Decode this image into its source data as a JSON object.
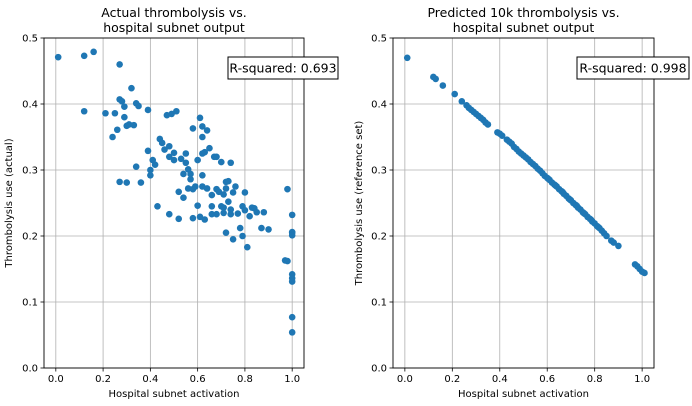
{
  "chart_data": [
    {
      "type": "scatter",
      "title_line1": "Actual thrombolysis vs.",
      "title_line2": "hospital subnet output",
      "xlabel": "Hospital subnet activation",
      "ylabel": "Thrombolysis use (actual)",
      "xlim": [
        -0.05,
        1.05
      ],
      "ylim": [
        0.0,
        0.5
      ],
      "xticks": [
        "0.0",
        "0.2",
        "0.4",
        "0.6",
        "0.8",
        "1.0"
      ],
      "yticks": [
        "0.0",
        "0.1",
        "0.2",
        "0.3",
        "0.4",
        "0.5"
      ],
      "grid": true,
      "annotation": "R-squared: 0.693",
      "annotation_position": "top-right",
      "color": "#1f77b4",
      "points": [
        [
          0.01,
          0.471
        ],
        [
          0.12,
          0.473
        ],
        [
          0.16,
          0.479
        ],
        [
          0.12,
          0.389
        ],
        [
          0.21,
          0.386
        ],
        [
          0.25,
          0.386
        ],
        [
          0.24,
          0.35
        ],
        [
          0.26,
          0.361
        ],
        [
          0.27,
          0.407
        ],
        [
          0.27,
          0.46
        ],
        [
          0.28,
          0.404
        ],
        [
          0.29,
          0.396
        ],
        [
          0.29,
          0.38
        ],
        [
          0.3,
          0.367
        ],
        [
          0.31,
          0.369
        ],
        [
          0.32,
          0.424
        ],
        [
          0.33,
          0.368
        ],
        [
          0.34,
          0.401
        ],
        [
          0.35,
          0.397
        ],
        [
          0.34,
          0.305
        ],
        [
          0.3,
          0.281
        ],
        [
          0.36,
          0.281
        ],
        [
          0.27,
          0.282
        ],
        [
          0.39,
          0.391
        ],
        [
          0.39,
          0.329
        ],
        [
          0.4,
          0.3
        ],
        [
          0.41,
          0.315
        ],
        [
          0.42,
          0.308
        ],
        [
          0.4,
          0.292
        ],
        [
          0.43,
          0.245
        ],
        [
          0.44,
          0.347
        ],
        [
          0.45,
          0.341
        ],
        [
          0.46,
          0.331
        ],
        [
          0.47,
          0.383
        ],
        [
          0.48,
          0.336
        ],
        [
          0.48,
          0.32
        ],
        [
          0.49,
          0.385
        ],
        [
          0.5,
          0.326
        ],
        [
          0.51,
          0.389
        ],
        [
          0.5,
          0.315
        ],
        [
          0.52,
          0.267
        ],
        [
          0.53,
          0.317
        ],
        [
          0.54,
          0.294
        ],
        [
          0.55,
          0.325
        ],
        [
          0.55,
          0.311
        ],
        [
          0.56,
          0.301
        ],
        [
          0.56,
          0.272
        ],
        [
          0.57,
          0.294
        ],
        [
          0.57,
          0.286
        ],
        [
          0.58,
          0.363
        ],
        [
          0.58,
          0.271
        ],
        [
          0.59,
          0.275
        ],
        [
          0.6,
          0.315
        ],
        [
          0.61,
          0.379
        ],
        [
          0.62,
          0.366
        ],
        [
          0.62,
          0.35
        ],
        [
          0.62,
          0.325
        ],
        [
          0.62,
          0.292
        ],
        [
          0.62,
          0.275
        ],
        [
          0.63,
          0.327
        ],
        [
          0.64,
          0.36
        ],
        [
          0.64,
          0.272
        ],
        [
          0.65,
          0.333
        ],
        [
          0.66,
          0.245
        ],
        [
          0.66,
          0.262
        ],
        [
          0.67,
          0.32
        ],
        [
          0.68,
          0.32
        ],
        [
          0.68,
          0.271
        ],
        [
          0.69,
          0.267
        ],
        [
          0.7,
          0.312
        ],
        [
          0.7,
          0.245
        ],
        [
          0.71,
          0.263
        ],
        [
          0.71,
          0.243
        ],
        [
          0.71,
          0.235
        ],
        [
          0.72,
          0.282
        ],
        [
          0.72,
          0.272
        ],
        [
          0.73,
          0.283
        ],
        [
          0.73,
          0.252
        ],
        [
          0.74,
          0.311
        ],
        [
          0.74,
          0.24
        ],
        [
          0.74,
          0.233
        ],
        [
          0.75,
          0.266
        ],
        [
          0.75,
          0.195
        ],
        [
          0.76,
          0.275
        ],
        [
          0.77,
          0.234
        ],
        [
          0.78,
          0.212
        ],
        [
          0.79,
          0.245
        ],
        [
          0.79,
          0.2
        ],
        [
          0.8,
          0.266
        ],
        [
          0.8,
          0.239
        ],
        [
          0.81,
          0.183
        ],
        [
          0.82,
          0.23
        ],
        [
          0.83,
          0.243
        ],
        [
          0.84,
          0.242
        ],
        [
          0.85,
          0.236
        ],
        [
          0.87,
          0.212
        ],
        [
          0.88,
          0.236
        ],
        [
          0.9,
          0.21
        ],
        [
          0.97,
          0.163
        ],
        [
          0.98,
          0.162
        ],
        [
          0.98,
          0.271
        ],
        [
          1.0,
          0.232
        ],
        [
          1.0,
          0.206
        ],
        [
          1.0,
          0.205
        ],
        [
          1.0,
          0.201
        ],
        [
          1.0,
          0.142
        ],
        [
          1.0,
          0.136
        ],
        [
          1.0,
          0.131
        ],
        [
          1.0,
          0.077
        ],
        [
          1.0,
          0.054
        ],
        [
          0.48,
          0.233
        ],
        [
          0.52,
          0.226
        ],
        [
          0.58,
          0.227
        ],
        [
          0.61,
          0.229
        ],
        [
          0.63,
          0.225
        ],
        [
          0.66,
          0.233
        ],
        [
          0.72,
          0.205
        ],
        [
          0.6,
          0.246
        ],
        [
          0.54,
          0.258
        ],
        [
          0.68,
          0.233
        ]
      ]
    },
    {
      "type": "scatter",
      "title_line1": "Predicted 10k thrombolysis vs.",
      "title_line2": "hospital subnet output",
      "xlabel": "Hospital subnet activation",
      "ylabel": "Thrombolysis use (reference set)",
      "xlim": [
        -0.05,
        1.05
      ],
      "ylim": [
        0.0,
        0.5
      ],
      "xticks": [
        "0.0",
        "0.2",
        "0.4",
        "0.6",
        "0.8",
        "1.0"
      ],
      "yticks": [
        "0.0",
        "0.1",
        "0.2",
        "0.3",
        "0.4",
        "0.5"
      ],
      "grid": true,
      "annotation": "R-squared: 0.998",
      "annotation_position": "top-right",
      "color": "#1f77b4",
      "points": [
        [
          0.01,
          0.47
        ],
        [
          0.12,
          0.441
        ],
        [
          0.13,
          0.438
        ],
        [
          0.16,
          0.428
        ],
        [
          0.21,
          0.415
        ],
        [
          0.24,
          0.404
        ],
        [
          0.26,
          0.398
        ],
        [
          0.27,
          0.394
        ],
        [
          0.28,
          0.391
        ],
        [
          0.29,
          0.388
        ],
        [
          0.3,
          0.385
        ],
        [
          0.31,
          0.382
        ],
        [
          0.32,
          0.379
        ],
        [
          0.33,
          0.376
        ],
        [
          0.34,
          0.372
        ],
        [
          0.35,
          0.369
        ],
        [
          0.39,
          0.357
        ],
        [
          0.4,
          0.355
        ],
        [
          0.41,
          0.352
        ],
        [
          0.43,
          0.346
        ],
        [
          0.44,
          0.343
        ],
        [
          0.45,
          0.34
        ],
        [
          0.46,
          0.335
        ],
        [
          0.47,
          0.332
        ],
        [
          0.48,
          0.328
        ],
        [
          0.49,
          0.325
        ],
        [
          0.5,
          0.322
        ],
        [
          0.51,
          0.319
        ],
        [
          0.52,
          0.316
        ],
        [
          0.53,
          0.312
        ],
        [
          0.54,
          0.309
        ],
        [
          0.55,
          0.306
        ],
        [
          0.56,
          0.302
        ],
        [
          0.57,
          0.299
        ],
        [
          0.58,
          0.295
        ],
        [
          0.59,
          0.291
        ],
        [
          0.6,
          0.288
        ],
        [
          0.61,
          0.285
        ],
        [
          0.62,
          0.281
        ],
        [
          0.63,
          0.278
        ],
        [
          0.64,
          0.275
        ],
        [
          0.65,
          0.271
        ],
        [
          0.66,
          0.268
        ],
        [
          0.67,
          0.264
        ],
        [
          0.68,
          0.261
        ],
        [
          0.69,
          0.257
        ],
        [
          0.7,
          0.254
        ],
        [
          0.71,
          0.25
        ],
        [
          0.72,
          0.247
        ],
        [
          0.73,
          0.243
        ],
        [
          0.74,
          0.24
        ],
        [
          0.75,
          0.236
        ],
        [
          0.76,
          0.233
        ],
        [
          0.77,
          0.229
        ],
        [
          0.78,
          0.226
        ],
        [
          0.79,
          0.222
        ],
        [
          0.8,
          0.219
        ],
        [
          0.81,
          0.215
        ],
        [
          0.82,
          0.212
        ],
        [
          0.83,
          0.208
        ],
        [
          0.84,
          0.204
        ],
        [
          0.85,
          0.2
        ],
        [
          0.87,
          0.193
        ],
        [
          0.88,
          0.19
        ],
        [
          0.9,
          0.185
        ],
        [
          0.97,
          0.157
        ],
        [
          0.98,
          0.154
        ],
        [
          0.99,
          0.15
        ],
        [
          1.0,
          0.146
        ],
        [
          1.01,
          0.144
        ],
        [
          0.605,
          0.2865
        ],
        [
          0.635,
          0.2765
        ],
        [
          0.665,
          0.2665
        ],
        [
          0.695,
          0.2555
        ],
        [
          0.725,
          0.2455
        ],
        [
          0.755,
          0.2345
        ],
        [
          0.785,
          0.2245
        ],
        [
          0.815,
          0.2135
        ]
      ]
    }
  ]
}
